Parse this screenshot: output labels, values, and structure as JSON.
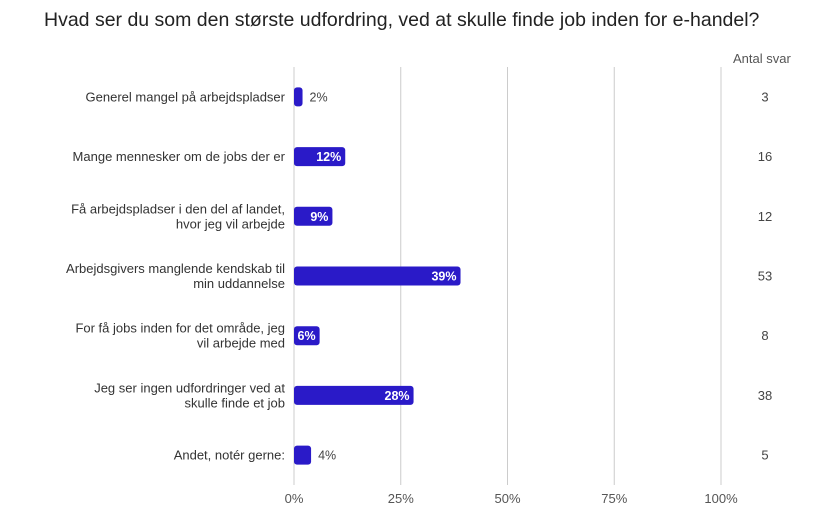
{
  "chart_data": {
    "type": "bar",
    "orientation": "horizontal",
    "title": "Hvad ser du som den største udfordring, ved at skulle finde job inden for e-handel?",
    "categories": [
      "Generel mangel på arbejdspladser",
      "Mange mennesker om de jobs der er",
      "Få arbejdspladser i den del af landet, hvor jeg vil arbejde",
      "Arbejdsgivers manglende kendskab til min uddannelse",
      "For få jobs inden for det område, jeg vil arbejde med",
      "Jeg ser ingen udfordringer ved at skulle finde et job",
      "Andet, notér gerne:"
    ],
    "category_lines": [
      [
        "Generel mangel på arbejdspladser"
      ],
      [
        "Mange mennesker om de jobs der er"
      ],
      [
        "Få arbejdspladser i den del af landet,",
        "hvor jeg vil arbejde"
      ],
      [
        "Arbejdsgivers manglende kendskab til",
        "min uddannelse"
      ],
      [
        "For få jobs inden for det område, jeg",
        "vil arbejde med"
      ],
      [
        "Jeg ser ingen udfordringer ved at",
        "skulle finde et job"
      ],
      [
        "Andet, notér gerne:"
      ]
    ],
    "values": [
      2,
      12,
      9,
      39,
      6,
      28,
      4
    ],
    "value_labels": [
      "2%",
      "12%",
      "9%",
      "39%",
      "6%",
      "28%",
      "4%"
    ],
    "counts": [
      3,
      16,
      12,
      53,
      8,
      38,
      5
    ],
    "count_header": "Antal svar",
    "x_ticks": [
      0,
      25,
      50,
      75,
      100
    ],
    "x_tick_labels": [
      "0%",
      "25%",
      "50%",
      "75%",
      "100%"
    ],
    "xlim": [
      0,
      100
    ],
    "grid": true,
    "bar_color": "#2a1ac8",
    "grid_color": "#cccccc"
  }
}
